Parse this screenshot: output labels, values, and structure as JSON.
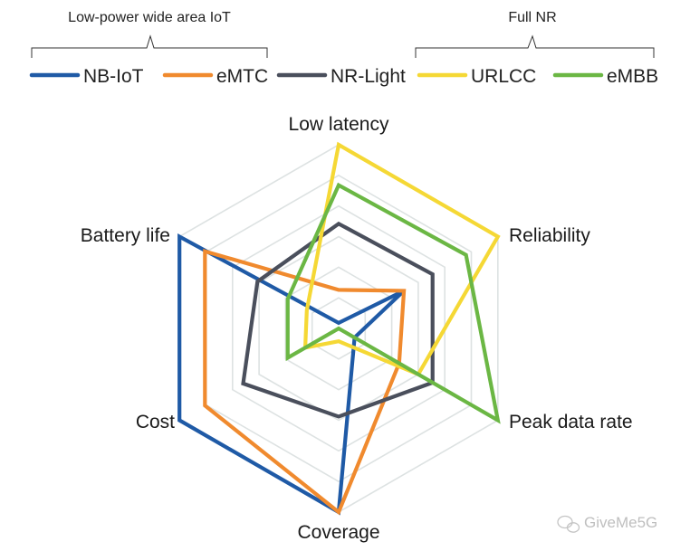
{
  "groups": [
    {
      "label": "Low-power wide area IoT",
      "members": [
        "NB-IoT",
        "eMTC"
      ]
    },
    {
      "label": "Full NR",
      "members": [
        "URLCC",
        "eMBB"
      ]
    }
  ],
  "watermark": "GiveMe5G",
  "chart_data": {
    "type": "radar",
    "axes": [
      "Low latency",
      "Reliability",
      "Peak data rate",
      "Coverage",
      "Cost",
      "Battery life"
    ],
    "scale": [
      0,
      1
    ],
    "grid_levels": 6,
    "grid": true,
    "legend_position": "top",
    "series": [
      {
        "name": "NB-IoT",
        "color": "#1f5aa6",
        "values": [
          0.03,
          0.41,
          0.1,
          1.0,
          1.0,
          1.0
        ]
      },
      {
        "name": "eMTC",
        "color": "#f08a2e",
        "values": [
          0.21,
          0.41,
          0.38,
          1.0,
          0.84,
          0.84
        ]
      },
      {
        "name": "NR-Light",
        "color": "#4a4f5c",
        "values": [
          0.57,
          0.59,
          0.59,
          0.48,
          0.6,
          0.51
        ]
      },
      {
        "name": "URLCC",
        "color": "#f5d835",
        "values": [
          1.0,
          1.0,
          0.5,
          0.07,
          0.21,
          0.2
        ]
      },
      {
        "name": "eMBB",
        "color": "#6bb744",
        "values": [
          0.78,
          0.8,
          1.0,
          0.0,
          0.32,
          0.32
        ]
      }
    ]
  }
}
